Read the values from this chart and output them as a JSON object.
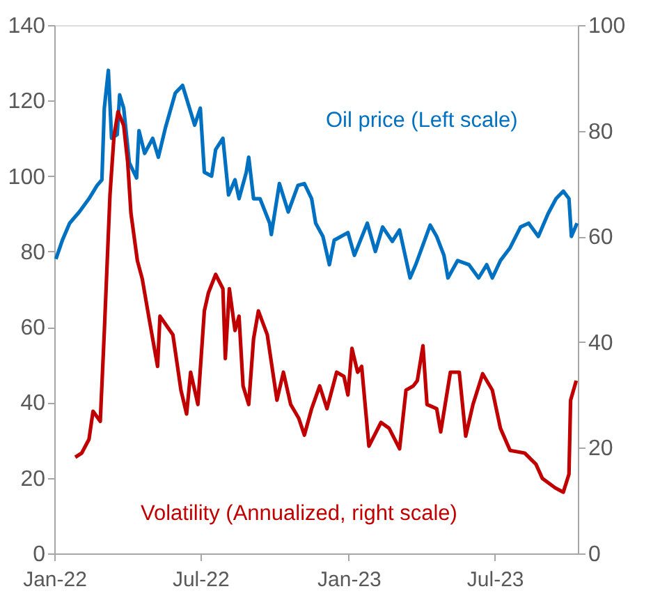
{
  "chart_data": {
    "type": "line",
    "xlim": [
      "2022-01-01",
      "2023-10-12"
    ],
    "xticks": [
      {
        "value": "2022-01-01",
        "label": "Jan-22"
      },
      {
        "value": "2022-07-01",
        "label": "Jul-22"
      },
      {
        "value": "2023-01-01",
        "label": "Jan-23"
      },
      {
        "value": "2023-07-01",
        "label": "Jul-23"
      }
    ],
    "ylim": [
      0,
      140
    ],
    "yticks": [
      0,
      20,
      40,
      60,
      80,
      100,
      120,
      140
    ],
    "y2lim": [
      0,
      100
    ],
    "y2ticks": [
      0,
      20,
      40,
      60,
      80,
      100
    ],
    "grid": false,
    "line_style": "solid",
    "marker": "none",
    "annotations": [
      "Oil price (Left scale)",
      "Volatility (Annualized, right scale)"
    ],
    "series": [
      {
        "color": "#0070c0",
        "x": [
          "2022-01-03",
          "2022-01-11",
          "2022-01-20",
          "2022-02-01",
          "2022-02-13",
          "2022-02-23",
          "2022-03-01",
          "2022-03-04",
          "2022-03-09",
          "2022-03-13",
          "2022-03-20",
          "2022-03-23",
          "2022-03-28",
          "2022-04-04",
          "2022-04-13",
          "2022-04-16",
          "2022-04-23",
          "2022-05-03",
          "2022-05-10",
          "2022-05-19",
          "2022-05-31",
          "2022-06-09",
          "2022-06-19",
          "2022-06-24",
          "2022-07-01",
          "2022-07-06",
          "2022-07-15",
          "2022-07-20",
          "2022-07-29",
          "2022-08-05",
          "2022-08-13",
          "2022-08-18",
          "2022-08-27",
          "2022-08-30",
          "2022-09-05",
          "2022-09-13",
          "2022-09-25",
          "2022-09-27",
          "2022-10-07",
          "2022-10-18",
          "2022-10-30",
          "2022-11-07",
          "2022-11-16",
          "2022-11-21",
          "2022-11-30",
          "2022-12-08",
          "2022-12-14",
          "2022-12-31",
          "2023-01-08",
          "2023-01-24",
          "2023-02-03",
          "2023-02-12",
          "2023-02-24",
          "2023-03-05",
          "2023-03-18",
          "2023-03-25",
          "2023-04-12",
          "2023-04-20",
          "2023-04-29",
          "2023-05-04",
          "2023-05-16",
          "2023-05-30",
          "2023-06-11",
          "2023-06-21",
          "2023-06-28",
          "2023-07-08",
          "2023-07-20",
          "2023-08-02",
          "2023-08-12",
          "2023-08-24",
          "2023-09-05",
          "2023-09-15",
          "2023-09-24",
          "2023-10-01",
          "2023-10-04",
          "2023-10-11"
        ],
        "values": [
          78,
          83,
          87.5,
          90.5,
          94,
          97.5,
          99,
          118,
          128,
          110,
          111,
          121.5,
          118,
          103.5,
          99.5,
          112,
          106,
          110,
          105,
          113,
          122,
          124,
          117,
          113.5,
          118,
          101,
          100,
          107,
          110,
          95,
          99,
          94,
          101,
          105,
          94,
          94,
          87.5,
          84.5,
          98,
          90.5,
          97.5,
          98,
          94,
          87.5,
          84,
          76.5,
          83,
          85,
          79,
          87.5,
          80,
          86.5,
          82.7,
          85.7,
          73,
          76.5,
          87,
          84,
          79,
          73,
          77.6,
          76.5,
          73,
          76.5,
          73,
          77.6,
          81,
          86.5,
          87.5,
          84,
          90,
          94,
          96,
          94,
          84,
          87.5
        ]
      },
      {
        "color": "#c00000",
        "axis": "y2",
        "x": [
          "2022-01-27",
          "2022-02-04",
          "2022-02-13",
          "2022-02-18",
          "2022-02-27",
          "2022-03-04",
          "2022-03-11",
          "2022-03-16",
          "2022-03-21",
          "2022-03-28",
          "2022-04-02",
          "2022-04-06",
          "2022-04-14",
          "2022-04-20",
          "2022-04-28",
          "2022-05-09",
          "2022-05-12",
          "2022-05-28",
          "2022-06-07",
          "2022-06-14",
          "2022-06-19",
          "2022-06-28",
          "2022-07-06",
          "2022-07-11",
          "2022-07-20",
          "2022-07-29",
          "2022-08-01",
          "2022-08-06",
          "2022-08-13",
          "2022-08-18",
          "2022-08-23",
          "2022-08-30",
          "2022-09-05",
          "2022-09-11",
          "2022-09-22",
          "2022-10-04",
          "2022-10-12",
          "2022-10-21",
          "2022-10-31",
          "2022-11-07",
          "2022-11-16",
          "2022-11-26",
          "2022-12-05",
          "2022-12-17",
          "2022-12-26",
          "2022-12-31",
          "2023-01-05",
          "2023-01-12",
          "2023-01-17",
          "2023-01-26",
          "2023-02-10",
          "2023-02-20",
          "2023-03-05",
          "2023-03-13",
          "2023-03-22",
          "2023-03-27",
          "2023-04-03",
          "2023-04-08",
          "2023-04-20",
          "2023-04-25",
          "2023-05-07",
          "2023-05-18",
          "2023-05-26",
          "2023-06-04",
          "2023-06-16",
          "2023-06-28",
          "2023-07-08",
          "2023-07-20",
          "2023-08-07",
          "2023-08-21",
          "2023-08-29",
          "2023-09-14",
          "2023-09-24",
          "2023-10-01",
          "2023-10-03",
          "2023-10-10"
        ],
        "values": [
          18.2,
          19,
          21.6,
          26.9,
          25,
          42,
          67.8,
          79,
          83.6,
          81,
          74,
          64.4,
          55.4,
          52,
          44.9,
          35.4,
          44.9,
          41.4,
          30.9,
          26.4,
          34.3,
          28.2,
          45.9,
          49.3,
          52.8,
          50.1,
          36.9,
          50.1,
          42.2,
          44.9,
          31.7,
          28.2,
          40.6,
          45.9,
          41.4,
          29,
          34.3,
          28.2,
          25.6,
          22.4,
          27.4,
          31.7,
          27.4,
          34.3,
          33.5,
          30,
          38.8,
          34.3,
          35.4,
          20.3,
          24.8,
          23.7,
          19.8,
          30.9,
          31.7,
          32.7,
          39.3,
          28.2,
          27.4,
          23,
          34.3,
          34.3,
          22.2,
          28.2,
          34,
          30.9,
          23.7,
          19.5,
          19,
          16.9,
          14.2,
          12.4,
          11.6,
          15,
          29,
          32.7
        ]
      }
    ]
  }
}
